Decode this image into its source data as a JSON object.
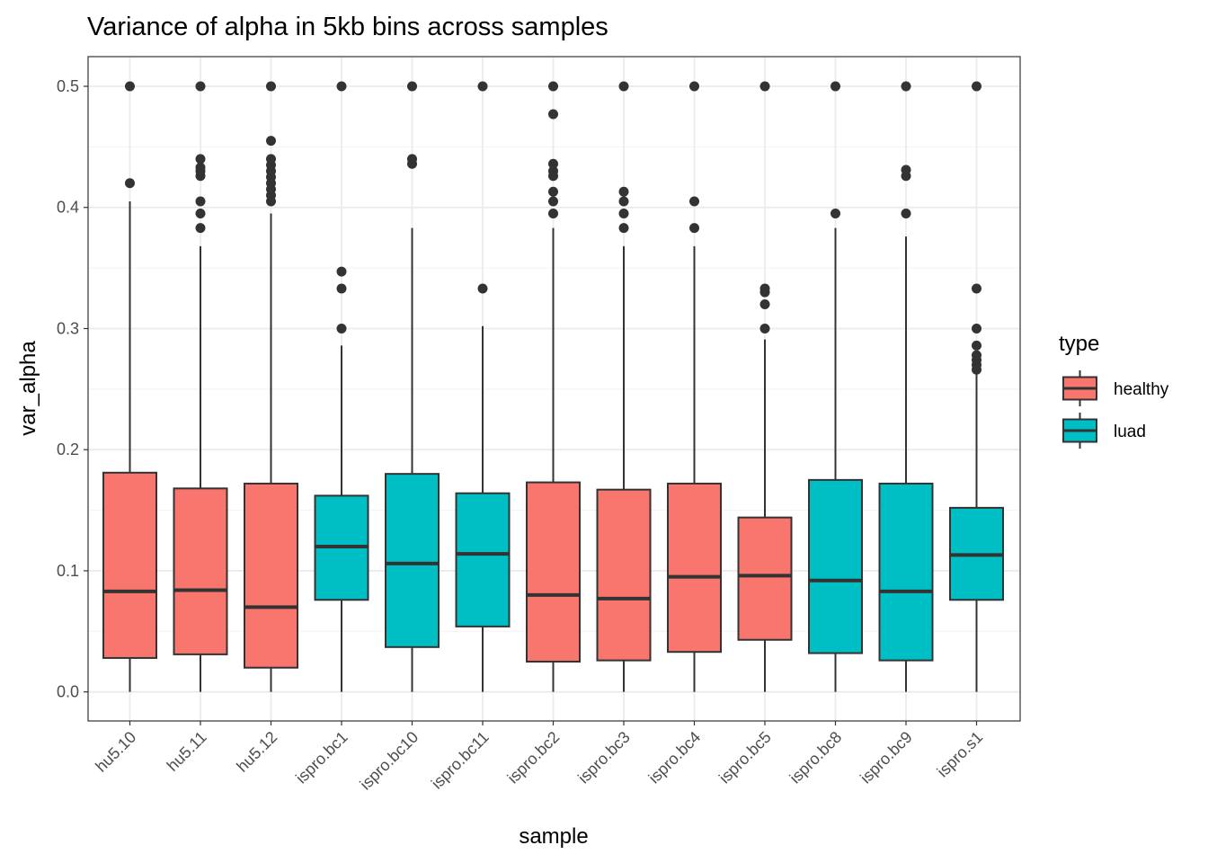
{
  "chart_data": {
    "type": "box",
    "title": "Variance of alpha in 5kb bins across samples",
    "xlabel": "sample",
    "ylabel": "var_alpha",
    "ylim": [
      -0.024,
      0.5245
    ],
    "yticks": [
      0.0,
      0.1,
      0.2,
      0.3,
      0.4,
      0.5
    ],
    "ytick_labels": [
      "0.0",
      "0.1",
      "0.2",
      "0.3",
      "0.4",
      "0.5"
    ],
    "grid": true,
    "legend": {
      "title": "type",
      "position": "right",
      "entries": [
        {
          "label": "healthy",
          "color": "#F8766D"
        },
        {
          "label": "luad",
          "color": "#00BFC4"
        }
      ]
    },
    "categories": [
      "hu5.10",
      "hu5.11",
      "hu5.12",
      "ispro.bc1",
      "ispro.bc10",
      "ispro.bc11",
      "ispro.bc2",
      "ispro.bc3",
      "ispro.bc4",
      "ispro.bc5",
      "ispro.bc8",
      "ispro.bc9",
      "ispro.s1"
    ],
    "boxes": [
      {
        "sample": "hu5.10",
        "type": "healthy",
        "lower_whisker": 0.0,
        "q1": 0.028,
        "median": 0.083,
        "q3": 0.181,
        "upper_whisker": 0.405,
        "outliers": [
          0.42,
          0.5
        ]
      },
      {
        "sample": "hu5.11",
        "type": "healthy",
        "lower_whisker": 0.0,
        "q1": 0.031,
        "median": 0.084,
        "q3": 0.168,
        "upper_whisker": 0.368,
        "outliers": [
          0.383,
          0.395,
          0.405,
          0.426,
          0.43,
          0.433,
          0.44,
          0.5
        ]
      },
      {
        "sample": "hu5.12",
        "type": "healthy",
        "lower_whisker": 0.0,
        "q1": 0.02,
        "median": 0.07,
        "q3": 0.172,
        "upper_whisker": 0.395,
        "outliers": [
          0.405,
          0.41,
          0.415,
          0.42,
          0.425,
          0.43,
          0.435,
          0.44,
          0.455,
          0.5
        ]
      },
      {
        "sample": "ispro.bc1",
        "type": "luad",
        "lower_whisker": 0.0,
        "q1": 0.076,
        "median": 0.12,
        "q3": 0.162,
        "upper_whisker": 0.286,
        "outliers": [
          0.3,
          0.333,
          0.347,
          0.5
        ]
      },
      {
        "sample": "ispro.bc10",
        "type": "luad",
        "lower_whisker": 0.0,
        "q1": 0.037,
        "median": 0.106,
        "q3": 0.18,
        "upper_whisker": 0.383,
        "outliers": [
          0.436,
          0.44,
          0.5
        ]
      },
      {
        "sample": "ispro.bc11",
        "type": "luad",
        "lower_whisker": 0.0,
        "q1": 0.054,
        "median": 0.114,
        "q3": 0.164,
        "upper_whisker": 0.302,
        "outliers": [
          0.333,
          0.5
        ]
      },
      {
        "sample": "ispro.bc2",
        "type": "healthy",
        "lower_whisker": 0.0,
        "q1": 0.025,
        "median": 0.08,
        "q3": 0.173,
        "upper_whisker": 0.383,
        "outliers": [
          0.395,
          0.405,
          0.413,
          0.426,
          0.43,
          0.436,
          0.477,
          0.5
        ]
      },
      {
        "sample": "ispro.bc3",
        "type": "healthy",
        "lower_whisker": 0.0,
        "q1": 0.026,
        "median": 0.077,
        "q3": 0.167,
        "upper_whisker": 0.368,
        "outliers": [
          0.383,
          0.395,
          0.405,
          0.413,
          0.5
        ]
      },
      {
        "sample": "ispro.bc4",
        "type": "healthy",
        "lower_whisker": 0.0,
        "q1": 0.033,
        "median": 0.095,
        "q3": 0.172,
        "upper_whisker": 0.368,
        "outliers": [
          0.383,
          0.405,
          0.5
        ]
      },
      {
        "sample": "ispro.bc5",
        "type": "healthy",
        "lower_whisker": 0.0,
        "q1": 0.043,
        "median": 0.096,
        "q3": 0.144,
        "upper_whisker": 0.291,
        "outliers": [
          0.3,
          0.32,
          0.33,
          0.333,
          0.5
        ]
      },
      {
        "sample": "ispro.bc8",
        "type": "luad",
        "lower_whisker": 0.0,
        "q1": 0.032,
        "median": 0.092,
        "q3": 0.175,
        "upper_whisker": 0.383,
        "outliers": [
          0.395,
          0.5
        ]
      },
      {
        "sample": "ispro.bc9",
        "type": "luad",
        "lower_whisker": 0.0,
        "q1": 0.026,
        "median": 0.083,
        "q3": 0.172,
        "upper_whisker": 0.376,
        "outliers": [
          0.395,
          0.426,
          0.431,
          0.5
        ]
      },
      {
        "sample": "ispro.s1",
        "type": "luad",
        "lower_whisker": 0.0,
        "q1": 0.076,
        "median": 0.113,
        "q3": 0.152,
        "upper_whisker": 0.264,
        "outliers": [
          0.266,
          0.27,
          0.274,
          0.278,
          0.286,
          0.3,
          0.333,
          0.5
        ]
      }
    ]
  }
}
